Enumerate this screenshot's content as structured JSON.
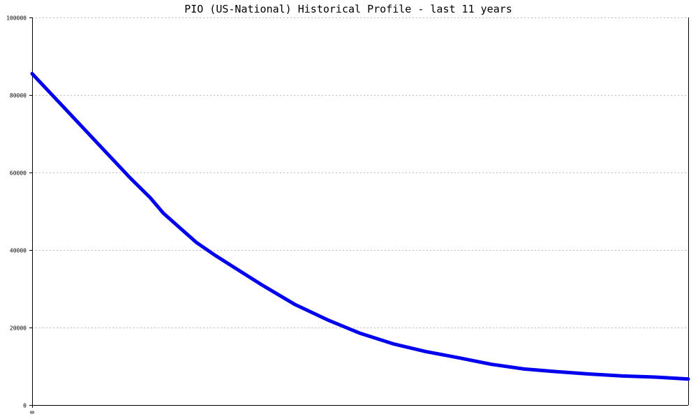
{
  "chart_data": {
    "type": "line",
    "title": "PIO (US-National) Historical Profile - last 11 years",
    "xlabel": "",
    "ylabel": "",
    "ylim": [
      0,
      100000
    ],
    "y_ticks": [
      0,
      20000,
      40000,
      60000,
      80000,
      100000
    ],
    "y_tick_labels": [
      "0",
      "20000",
      "40000",
      "60000",
      "80000",
      "100000"
    ],
    "x_ticks": [
      0
    ],
    "x_tick_labels": [
      "0"
    ],
    "xlim": [
      0,
      100
    ],
    "grid": true,
    "series": [
      {
        "color": "#0000ee",
        "x": [
          0,
          5,
          10,
          15,
          18,
          20,
          25,
          28,
          35,
          40,
          45,
          50,
          55,
          60,
          65,
          70,
          75,
          80,
          85,
          90,
          95,
          100
        ],
        "values": [
          85500,
          76500,
          67500,
          58500,
          53500,
          49500,
          42000,
          38500,
          31000,
          26000,
          22000,
          18500,
          15800,
          13800,
          12200,
          10500,
          9300,
          8600,
          8000,
          7500,
          7200,
          6700
        ]
      }
    ]
  }
}
